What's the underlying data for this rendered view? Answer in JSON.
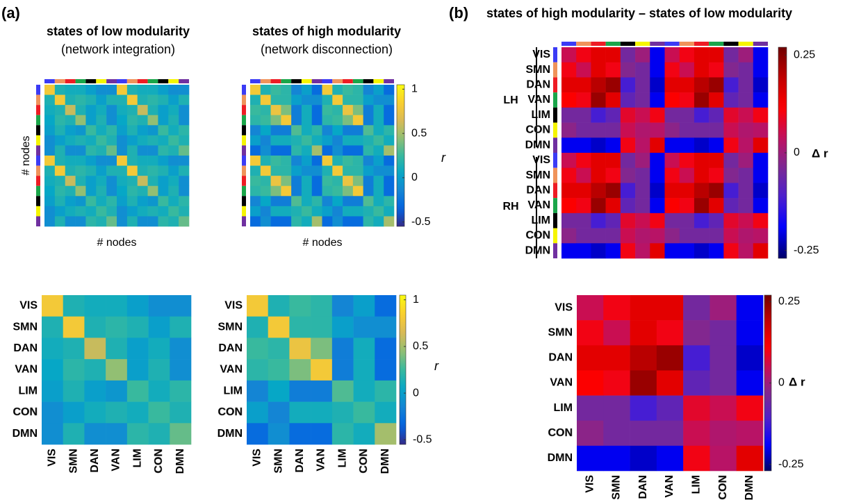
{
  "panel_labels": [
    "(a)",
    "(b)"
  ],
  "chart_data": [
    {
      "type": "heatmap",
      "title": "states of low modularity",
      "subtitle": "(network integration)",
      "node_axis_label": "# nodes",
      "colormap": "parula",
      "categories": [
        "VIS",
        "SMN",
        "DAN",
        "VAN",
        "LIM",
        "CON",
        "DMN"
      ],
      "category_colors": [
        "#3b3bf5",
        "#f0935a",
        "#ee1c24",
        "#1aa64a",
        "#000000",
        "#f5f500",
        "#7030a0"
      ],
      "values": [
        [
          0.8,
          0.15,
          0.1,
          0.1,
          0.0,
          -0.1,
          -0.1
        ],
        [
          0.15,
          0.8,
          0.15,
          0.2,
          0.15,
          0.0,
          0.15
        ],
        [
          0.1,
          0.15,
          0.6,
          0.15,
          0.0,
          0.1,
          -0.1
        ],
        [
          0.05,
          0.2,
          0.15,
          0.45,
          0.0,
          0.15,
          -0.1
        ],
        [
          0.0,
          0.15,
          0.0,
          -0.05,
          0.25,
          0.1,
          0.2
        ],
        [
          -0.1,
          0.0,
          0.1,
          0.15,
          0.1,
          0.25,
          0.15
        ],
        [
          -0.1,
          0.15,
          -0.1,
          -0.1,
          0.2,
          0.15,
          0.35
        ]
      ],
      "zlim": [
        -0.55,
        1.05
      ]
    },
    {
      "type": "heatmap",
      "title": "states of high modularity",
      "subtitle": "(network disconnection)",
      "node_axis_label": "# nodes",
      "colormap": "parula",
      "categories": [
        "VIS",
        "SMN",
        "DAN",
        "VAN",
        "LIM",
        "CON",
        "DMN"
      ],
      "category_colors": [
        "#3b3bf5",
        "#f0935a",
        "#ee1c24",
        "#1aa64a",
        "#000000",
        "#f5f500",
        "#7030a0"
      ],
      "values": [
        [
          0.8,
          0.15,
          0.25,
          0.2,
          -0.15,
          0.0,
          -0.3
        ],
        [
          0.15,
          0.8,
          0.2,
          0.2,
          0.0,
          -0.1,
          -0.1
        ],
        [
          0.25,
          0.2,
          0.75,
          0.4,
          -0.2,
          0.1,
          -0.3
        ],
        [
          0.2,
          0.25,
          0.4,
          0.8,
          -0.2,
          0.1,
          -0.3
        ],
        [
          -0.15,
          0.05,
          -0.2,
          -0.2,
          0.3,
          0.1,
          0.2
        ],
        [
          0.0,
          -0.15,
          0.1,
          0.1,
          0.15,
          0.25,
          0.1
        ],
        [
          -0.3,
          -0.1,
          -0.3,
          -0.3,
          0.2,
          0.1,
          0.5
        ]
      ],
      "zlim": [
        -0.55,
        1.05
      ],
      "zticks": [
        -0.5,
        0,
        0.5,
        1
      ],
      "colorbar_label": "r"
    },
    {
      "type": "heatmap",
      "title": "states of high modularity – states of low modularity",
      "colormap": "diverging",
      "hemispheres": [
        "LH",
        "RH"
      ],
      "categories": [
        "VIS",
        "SMN",
        "DAN",
        "VAN",
        "LIM",
        "CON",
        "DMN"
      ],
      "category_colors": [
        "#3b3bf5",
        "#f0935a",
        "#ee1c24",
        "#1aa64a",
        "#000000",
        "#f5f500",
        "#7030a0"
      ],
      "values": [
        [
          0.05,
          0.1,
          0.15,
          0.15,
          -0.05,
          0.0,
          -0.2
        ],
        [
          0.1,
          0.05,
          0.15,
          0.1,
          -0.03,
          -0.05,
          -0.2
        ],
        [
          0.15,
          0.15,
          0.2,
          0.23,
          -0.12,
          -0.05,
          -0.22
        ],
        [
          0.12,
          0.1,
          0.23,
          0.15,
          -0.08,
          -0.05,
          -0.2
        ],
        [
          -0.05,
          -0.05,
          -0.12,
          -0.08,
          0.08,
          0.05,
          0.1
        ],
        [
          -0.02,
          -0.05,
          -0.05,
          -0.05,
          0.05,
          0.02,
          0.03
        ],
        [
          -0.2,
          -0.2,
          -0.22,
          -0.2,
          0.1,
          0.03,
          0.15
        ]
      ],
      "zlim": [
        -0.27,
        0.27
      ],
      "zticks": [
        -0.25,
        0,
        0.25
      ],
      "colorbar_label": "Δ r"
    }
  ]
}
